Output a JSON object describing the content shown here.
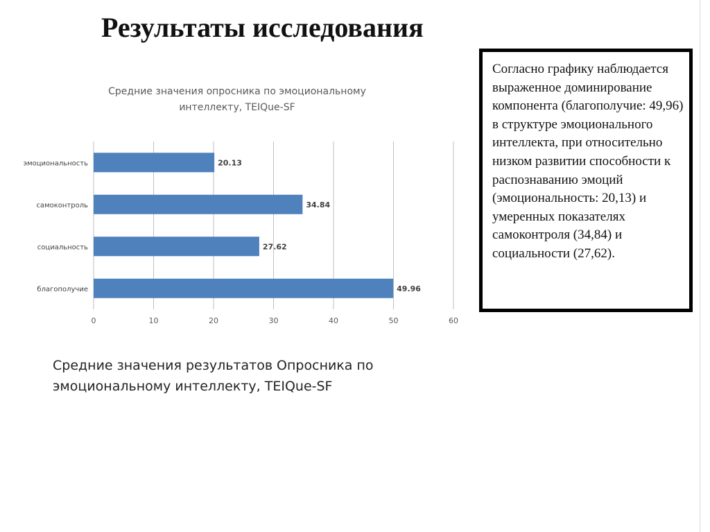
{
  "slide": {
    "title": "Результаты исследования",
    "conclusion": "Согласно графику наблюдается выраженное доминирование компонента (благополучие: 49,96) в структуре эмоционального интеллекта, при относительно низком развитии способности к распознаванию эмоций (эмоциональность: 20,13) и умеренных показателях самоконтроля (34,84) и социальности (27,62).",
    "caption": "Средние значения результатов Опросника по эмоциональному интеллекту, TEIQue-SF"
  },
  "chart_data": {
    "type": "bar",
    "orientation": "horizontal",
    "title_lines": [
      "Средние значения опросника по эмоциональному",
      "интеллекту, TEIQue-SF"
    ],
    "categories": [
      "эмоциональность",
      "самоконтроль",
      "социальность",
      "благополучие"
    ],
    "values": [
      20.13,
      34.84,
      27.62,
      49.96
    ],
    "value_labels": [
      "20.13",
      "34.84",
      "27.62",
      "49.96"
    ],
    "xlim": [
      0,
      60
    ],
    "x_ticks": [
      0,
      10,
      20,
      30,
      40,
      50,
      60
    ],
    "grid": true,
    "legend": false,
    "bar_color": "#4f81bd"
  }
}
